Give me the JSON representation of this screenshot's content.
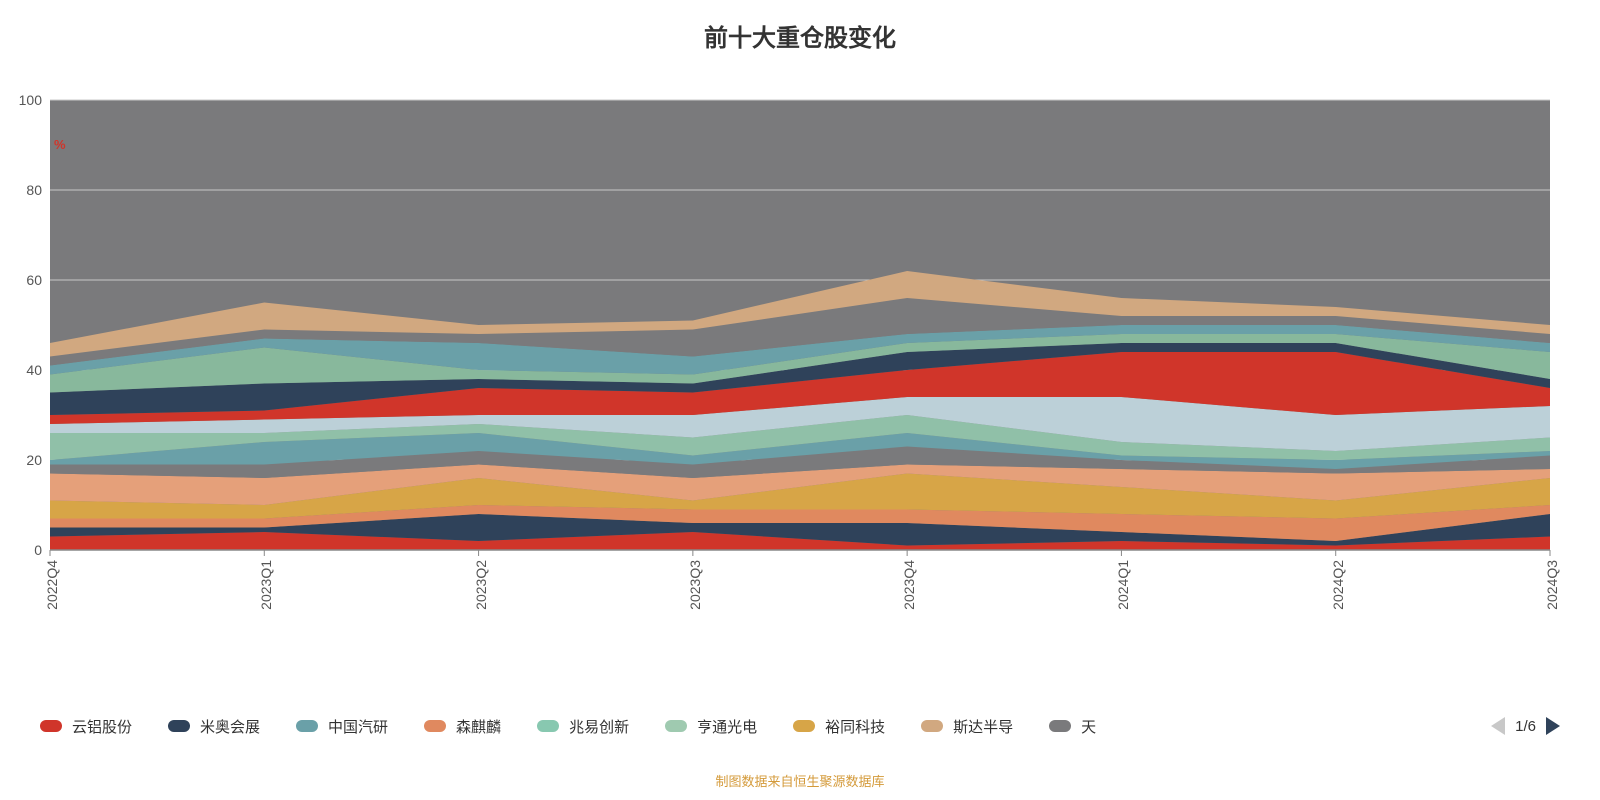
{
  "title": "前十大重仓股变化",
  "footer_text": "制图数据来自恒生聚源数据库",
  "footer_color": "#d49a3a",
  "chart": {
    "type": "stacked-area",
    "plot_bg_color": "#7a7a7c",
    "grid_color": "#c8c8c8",
    "axis_color": "#888888",
    "ylim": [
      0,
      100
    ],
    "ytick_step": 20,
    "yticks": [
      "0",
      "20",
      "40",
      "60",
      "80",
      "100"
    ],
    "y_unit": "%",
    "y_unit_color": "#d0352a",
    "categories": [
      "2022Q4",
      "2023Q1",
      "2023Q2",
      "2023Q3",
      "2023Q4",
      "2024Q1",
      "2024Q2",
      "2024Q3"
    ],
    "layers": [
      {
        "color": "#d0352a",
        "values": [
          3,
          4,
          2,
          4,
          1,
          2,
          1,
          3
        ]
      },
      {
        "color": "#2f425a",
        "values": [
          2,
          1,
          6,
          2,
          5,
          2,
          1,
          5
        ]
      },
      {
        "color": "#e0895f",
        "values": [
          2,
          2,
          2,
          3,
          3,
          4,
          5,
          2
        ]
      },
      {
        "color": "#d7a547",
        "values": [
          4,
          3,
          6,
          2,
          8,
          6,
          4,
          6
        ]
      },
      {
        "color": "#e5a07a",
        "values": [
          6,
          6,
          3,
          5,
          2,
          4,
          6,
          2
        ]
      },
      {
        "color": "#7a7a7c",
        "values": [
          2,
          3,
          3,
          3,
          4,
          2,
          1,
          3
        ]
      },
      {
        "color": "#6aa0a8",
        "values": [
          1,
          5,
          4,
          2,
          3,
          1,
          2,
          1
        ]
      },
      {
        "color": "#90c0a8",
        "values": [
          6,
          2,
          2,
          4,
          4,
          3,
          2,
          3
        ]
      },
      {
        "color": "#bcd0d8",
        "values": [
          2,
          3,
          2,
          5,
          4,
          10,
          8,
          7
        ]
      },
      {
        "color": "#d0352a",
        "values": [
          2,
          2,
          6,
          5,
          6,
          10,
          14,
          4
        ]
      },
      {
        "color": "#2f425a",
        "values": [
          5,
          6,
          2,
          2,
          4,
          2,
          2,
          2
        ]
      },
      {
        "color": "#88b89c",
        "values": [
          4,
          8,
          2,
          2,
          2,
          2,
          2,
          6
        ]
      },
      {
        "color": "#6aa0a8",
        "values": [
          2,
          2,
          6,
          4,
          2,
          2,
          2,
          2
        ]
      },
      {
        "color": "#7a7a7c",
        "values": [
          2,
          2,
          2,
          6,
          8,
          2,
          2,
          2
        ]
      },
      {
        "color": "#d1a880",
        "values": [
          3,
          6,
          2,
          2,
          6,
          4,
          2,
          2
        ]
      }
    ]
  },
  "legend": {
    "items": [
      {
        "label": "云铝股份",
        "color": "#d0352a"
      },
      {
        "label": "米奥会展",
        "color": "#2f425a"
      },
      {
        "label": "中国汽研",
        "color": "#6aa0a8"
      },
      {
        "label": "森麒麟",
        "color": "#e0895f"
      },
      {
        "label": "兆易创新",
        "color": "#88c8b0"
      },
      {
        "label": "亨通光电",
        "color": "#9fcab0"
      },
      {
        "label": "裕同科技",
        "color": "#d7a547"
      },
      {
        "label": "斯达半导",
        "color": "#d1a880"
      },
      {
        "label": "天",
        "color": "#7a7a7c"
      }
    ],
    "pager": {
      "text": "1/6",
      "left_color": "#c8c8c8",
      "right_color": "#2f425a"
    }
  }
}
